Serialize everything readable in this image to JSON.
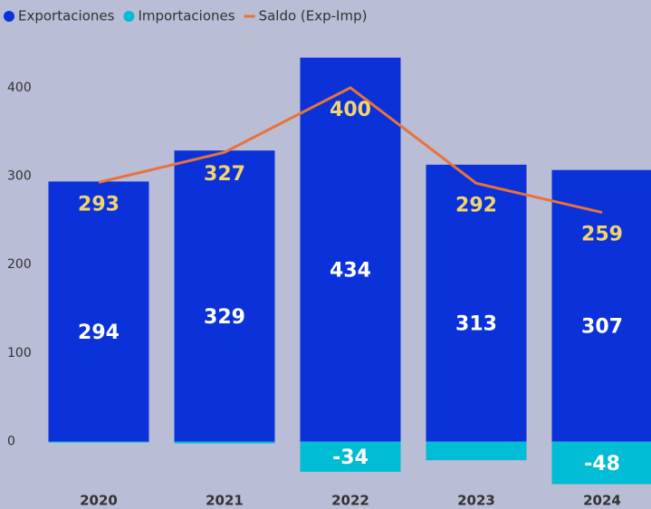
{
  "chart_data": {
    "type": "bar_line",
    "categories": [
      "2020",
      "2021",
      "2022",
      "2023",
      "2024"
    ],
    "series": [
      {
        "name": "Exportaciones",
        "type": "bar",
        "color": "#0a32d8",
        "values": [
          294,
          329,
          434,
          313,
          307
        ]
      },
      {
        "name": "Importaciones",
        "type": "bar",
        "color": "#00bcd4",
        "values": [
          -1,
          -2,
          -34,
          -21,
          -48
        ]
      },
      {
        "name": "Saldo (Exp-Imp)",
        "type": "line",
        "color": "#e8733a",
        "values": [
          293,
          327,
          400,
          292,
          259
        ]
      }
    ],
    "ylim": [
      -70,
      450
    ],
    "yticks": [
      0,
      100,
      200,
      300,
      400
    ],
    "grid": false,
    "legend": "top-left"
  }
}
